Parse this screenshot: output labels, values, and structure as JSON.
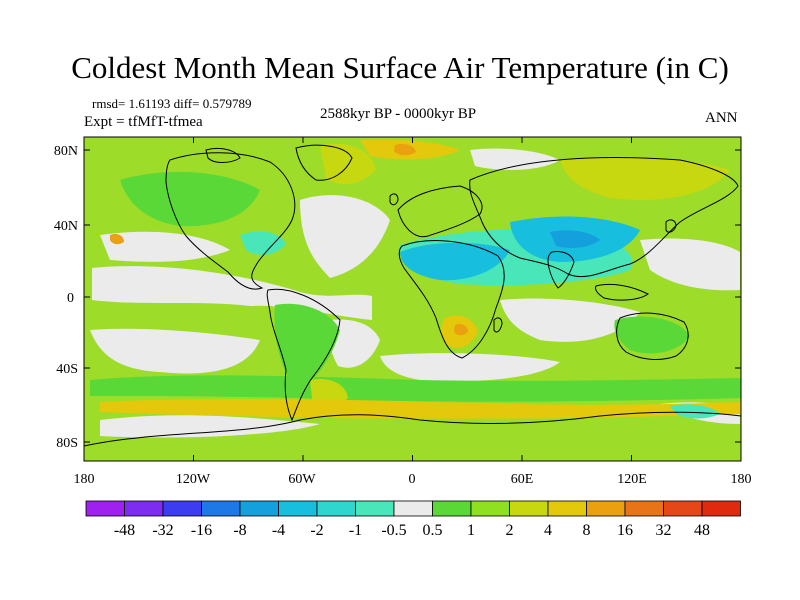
{
  "figure": {
    "title": "Coldest Month Mean Surface Air Temperature (in C)",
    "stats": "rmsd= 1.61193 diff= 0.579789",
    "experiment": "Expt = tfMfT-tfmea",
    "period": "2588kyr BP - 0000kyr BP",
    "season": "ANN"
  },
  "axes": {
    "lat_ticks": [
      "80N",
      "40N",
      "0",
      "40S",
      "80S"
    ],
    "lon_ticks": [
      "180",
      "120W",
      "60W",
      "0",
      "60E",
      "120E",
      "180"
    ]
  },
  "colorbar": {
    "labels": [
      "-48",
      "-32",
      "-16",
      "-8",
      "-4",
      "-2",
      "-1",
      "-0.5",
      "0.5",
      "1",
      "2",
      "4",
      "8",
      "16",
      "32",
      "48"
    ],
    "colors": [
      "#a020f0",
      "#7d2cf0",
      "#3c3cf0",
      "#1e78e6",
      "#14a0dc",
      "#18bede",
      "#2fd6cf",
      "#48e6b8",
      "#ebebeb",
      "#5ad838",
      "#8ee020",
      "#c8d810",
      "#e4c80c",
      "#eba010",
      "#e87418",
      "#e44818",
      "#e02a10"
    ]
  },
  "map_colors": {
    "ocean_base": "#9edc2a",
    "neutral": "#ebebeb",
    "warm_small": "#5ad838",
    "warm_med": "#c8d810",
    "warm_high": "#e4c80c",
    "warm_hot": "#eba010",
    "cool_small": "#48e6b8",
    "cool_med": "#18bede",
    "cool_strong": "#14a0dc",
    "coast": "#000000"
  }
}
